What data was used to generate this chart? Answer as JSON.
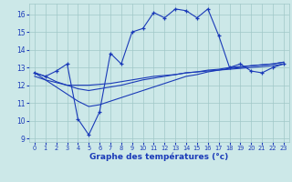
{
  "xlabel": "Graphe des températures (°c)",
  "x_ticks": [
    0,
    1,
    2,
    3,
    4,
    5,
    6,
    7,
    8,
    9,
    10,
    11,
    12,
    13,
    14,
    15,
    16,
    17,
    18,
    19,
    20,
    21,
    22,
    23
  ],
  "ylim": [
    8.8,
    16.6
  ],
  "xlim": [
    -0.5,
    23.5
  ],
  "y_ticks": [
    9,
    10,
    11,
    12,
    13,
    14,
    15,
    16
  ],
  "bg_color": "#cce8e8",
  "line_color": "#1a3ab8",
  "grid_color": "#a0c8c8",
  "line1_x": [
    0,
    1,
    2,
    3,
    4,
    5,
    6,
    7,
    8,
    9,
    10,
    11,
    12,
    13,
    14,
    15,
    16,
    17,
    18,
    19,
    20,
    21,
    22,
    23
  ],
  "line1_y": [
    12.7,
    12.5,
    12.8,
    13.2,
    10.1,
    9.2,
    10.5,
    13.8,
    13.2,
    15.0,
    15.2,
    16.1,
    15.8,
    16.3,
    16.2,
    15.8,
    16.3,
    14.8,
    13.0,
    13.2,
    12.8,
    12.7,
    13.0,
    13.2
  ],
  "line2_x": [
    0,
    1,
    2,
    3,
    4,
    5,
    6,
    7,
    8,
    9,
    10,
    11,
    12,
    13,
    14,
    15,
    16,
    17,
    18,
    19,
    20,
    21,
    22,
    23
  ],
  "line2_y": [
    12.5,
    12.3,
    12.15,
    12.0,
    12.0,
    12.0,
    12.05,
    12.1,
    12.2,
    12.3,
    12.4,
    12.5,
    12.55,
    12.6,
    12.7,
    12.75,
    12.8,
    12.85,
    12.9,
    12.95,
    13.0,
    13.05,
    13.1,
    13.2
  ],
  "line3_x": [
    0,
    1,
    2,
    3,
    4,
    5,
    6,
    7,
    8,
    9,
    10,
    11,
    12,
    13,
    14,
    15,
    16,
    17,
    18,
    19,
    20,
    21,
    22,
    23
  ],
  "line3_y": [
    12.7,
    12.5,
    12.2,
    12.0,
    11.8,
    11.7,
    11.8,
    11.9,
    12.0,
    12.15,
    12.3,
    12.4,
    12.5,
    12.6,
    12.7,
    12.75,
    12.85,
    12.9,
    13.0,
    13.05,
    13.1,
    13.15,
    13.2,
    13.3
  ],
  "line4_x": [
    0,
    1,
    2,
    3,
    4,
    5,
    6,
    7,
    8,
    9,
    10,
    11,
    12,
    13,
    14,
    15,
    16,
    17,
    18,
    19,
    20,
    21,
    22,
    23
  ],
  "line4_y": [
    12.7,
    12.3,
    11.9,
    11.5,
    11.1,
    10.8,
    10.9,
    11.1,
    11.3,
    11.5,
    11.7,
    11.9,
    12.1,
    12.3,
    12.5,
    12.6,
    12.75,
    12.85,
    12.95,
    13.0,
    13.1,
    13.15,
    13.2,
    13.3
  ]
}
